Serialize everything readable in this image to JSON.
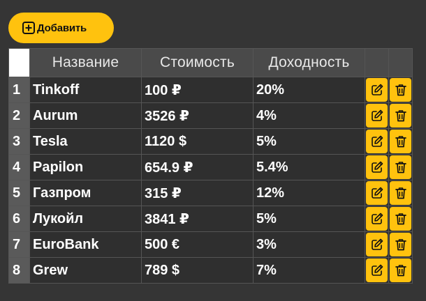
{
  "toolbar": {
    "add_label": "Добавить"
  },
  "colors": {
    "background": "#353535",
    "accent": "#ffc20e",
    "header_bg": "#4a4a4a",
    "cell_bg": "#2f2f2f"
  },
  "icons": {
    "add": "plus-square-icon",
    "edit": "edit-icon",
    "delete": "trash-icon"
  },
  "table": {
    "columns": [
      "Название",
      "Стоимость",
      "Доходность"
    ],
    "rows": [
      {
        "index": "1",
        "name": "Tinkoff",
        "cost": "100 ₽",
        "yield": "20%"
      },
      {
        "index": "2",
        "name": "Aurum",
        "cost": "3526 ₽",
        "yield": "4%"
      },
      {
        "index": "3",
        "name": "Tesla",
        "cost": "1120 $",
        "yield": "5%"
      },
      {
        "index": "4",
        "name": "Papilon",
        "cost": "654.9 ₽",
        "yield": "5.4%"
      },
      {
        "index": "5",
        "name": "Газпром",
        "cost": "315 ₽",
        "yield": "12%"
      },
      {
        "index": "6",
        "name": "Лукойл",
        "cost": "3841 ₽",
        "yield": "5%"
      },
      {
        "index": "7",
        "name": "EuroBank",
        "cost": "500 €",
        "yield": "3%"
      },
      {
        "index": "8",
        "name": "Grew",
        "cost": "789 $",
        "yield": "7%"
      }
    ]
  }
}
